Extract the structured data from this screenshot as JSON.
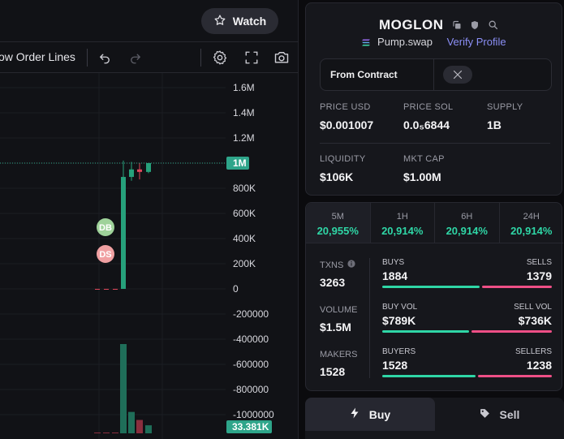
{
  "header": {
    "watch_label": "Watch"
  },
  "toolbar": {
    "show_order_lines_label": "ow Order Lines",
    "undo_icon": "undo-icon",
    "redo_icon": "redo-icon",
    "settings_icon": "gear-icon",
    "fullscreen_icon": "fullscreen-icon",
    "screenshot_icon": "camera-icon"
  },
  "chart": {
    "price_axis_labels": [
      "1.6M",
      "1.4M",
      "1.2M",
      "1M",
      "800K",
      "600K",
      "400K",
      "200K",
      "0",
      "-200000",
      "-400000",
      "-600000",
      "-800000",
      "-1000000"
    ],
    "current_price_label": "1M",
    "volume_label": "33.381K",
    "markers": [
      {
        "label": "DB"
      },
      {
        "label": "DS"
      }
    ],
    "colors": {
      "up": "#26a17b",
      "down": "#e0475b",
      "accent": "#2ea58a"
    }
  },
  "chart_data": {
    "type": "candlestick",
    "ylim": [
      -1100000,
      1700000
    ],
    "candles": [
      {
        "open": 0,
        "high": 0,
        "low": 0,
        "close": 0,
        "dir": "down"
      },
      {
        "open": 0,
        "high": 0,
        "low": 0,
        "close": 0,
        "dir": "down"
      },
      {
        "open": 0,
        "high": 0,
        "low": 0,
        "close": 0,
        "dir": "down"
      },
      {
        "open": 0,
        "high": 1020000,
        "low": 0,
        "close": 890000,
        "dir": "up"
      },
      {
        "open": 890000,
        "high": 1010000,
        "low": 860000,
        "close": 950000,
        "dir": "up"
      },
      {
        "open": 950000,
        "high": 1000000,
        "low": 870000,
        "close": 930000,
        "dir": "down"
      },
      {
        "open": 930000,
        "high": 1000000,
        "low": 920000,
        "close": 1000000,
        "dir": "up"
      }
    ],
    "volumes": [
      0,
      0,
      0,
      33381,
      8000,
      5000,
      3000
    ]
  },
  "token": {
    "name": "MOGLON",
    "exchange": "Pump.swap",
    "verify_label": "Verify Profile",
    "contract_label": "From Contract",
    "x_icon": "x-logo-icon"
  },
  "stats": [
    {
      "key": "PRICE USD",
      "value": "$0.001007"
    },
    {
      "key": "PRICE SOL",
      "value": "0.0₅6844"
    },
    {
      "key": "SUPPLY",
      "value": "1B"
    },
    {
      "key": "LIQUIDITY",
      "value": "$106K"
    },
    {
      "key": "MKT CAP",
      "value": "$1.00M"
    }
  ],
  "timeframes": [
    {
      "label": "5M",
      "value": "20,955%"
    },
    {
      "label": "1H",
      "value": "20,914%"
    },
    {
      "label": "6H",
      "value": "20,914%"
    },
    {
      "label": "24H",
      "value": "20,914%"
    }
  ],
  "activity": {
    "txns": {
      "label": "TXNS",
      "value": "3263"
    },
    "volume": {
      "label": "VOLUME",
      "value": "$1.5M"
    },
    "makers": {
      "label": "MAKERS",
      "value": "1528"
    },
    "buys": {
      "label": "BUYS",
      "value": "1884",
      "share": 0.577
    },
    "sells": {
      "label": "SELLS",
      "value": "1379"
    },
    "buy_vol": {
      "label": "BUY VOL",
      "value": "$789K",
      "share": 0.517
    },
    "sell_vol": {
      "label": "SELL VOL",
      "value": "$736K"
    },
    "buyers": {
      "label": "BUYERS",
      "value": "1528",
      "share": 0.553
    },
    "sellers": {
      "label": "SELLERS",
      "value": "1238"
    }
  },
  "trade": {
    "buy_label": "Buy",
    "sell_label": "Sell"
  }
}
